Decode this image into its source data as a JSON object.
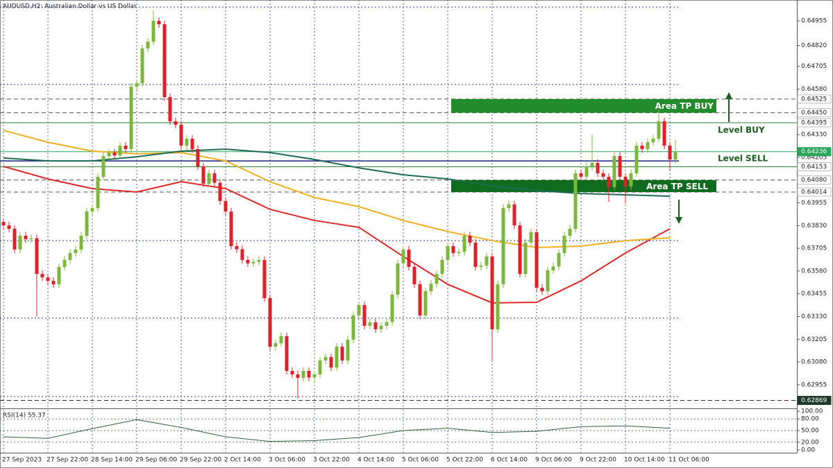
{
  "chart_data": {
    "type": "candlestick",
    "title": "AUDUSD,H2: Australian Dollar vs US Dollar",
    "categories": [
      "27 Sep 2023",
      null,
      null,
      null,
      null,
      null,
      null,
      null,
      "27 Sep 22:00",
      null,
      null,
      null,
      null,
      null,
      null,
      null,
      "28 Sep 14:00",
      null,
      null,
      null,
      null,
      null,
      null,
      null,
      "29 Sep 06:00",
      null,
      null,
      null,
      null,
      null,
      null,
      null,
      "29 Sep 22:00",
      null,
      null,
      null,
      null,
      null,
      null,
      null,
      "2 Oct 14:00",
      null,
      null,
      null,
      null,
      null,
      null,
      null,
      "3 Oct 06:00",
      null,
      null,
      null,
      null,
      null,
      null,
      null,
      "3 Oct 22:00",
      null,
      null,
      null,
      null,
      null,
      null,
      null,
      "4 Oct 14:00",
      null,
      null,
      null,
      null,
      null,
      null,
      null,
      "5 Oct 06:00",
      null,
      null,
      null,
      null,
      null,
      null,
      null,
      "5 Oct 22:00",
      null,
      null,
      null,
      null,
      null,
      null,
      null,
      "6 Oct 14:00",
      null,
      null,
      null,
      null,
      null,
      null,
      null,
      "9 Oct 06:00",
      null,
      null,
      null,
      null,
      null,
      null,
      null,
      "9 Oct 22:00",
      null,
      null,
      null,
      null,
      null,
      null,
      null,
      "10 Oct 14:00",
      null,
      null,
      null,
      null,
      null,
      null,
      null,
      "11 Oct 06:00",
      null
    ],
    "ohlc": [
      [
        0.6385,
        0.6387,
        0.63811,
        0.63831
      ],
      [
        0.63831,
        0.63851,
        0.63792,
        0.63812
      ],
      [
        0.63812,
        0.63832,
        0.63678,
        0.63698
      ],
      [
        0.63698,
        0.63794,
        0.63678,
        0.63774
      ],
      [
        0.63774,
        0.63794,
        0.63735,
        0.63755
      ],
      [
        0.63755,
        0.6378,
        0.63735,
        0.6376
      ],
      [
        0.6376,
        0.6378,
        0.6333,
        0.63564
      ],
      [
        0.63564,
        0.63584,
        0.63525,
        0.63545
      ],
      [
        0.63545,
        0.63565,
        0.63506,
        0.63526
      ],
      [
        0.63526,
        0.63546,
        0.63487,
        0.63507
      ],
      [
        0.63507,
        0.63623,
        0.63487,
        0.63603
      ],
      [
        0.63603,
        0.63661,
        0.63583,
        0.63641
      ],
      [
        0.63641,
        0.63699,
        0.63621,
        0.63679
      ],
      [
        0.63679,
        0.63718,
        0.63659,
        0.63698
      ],
      [
        0.63698,
        0.63794,
        0.63678,
        0.63774
      ],
      [
        0.63774,
        0.63927,
        0.63754,
        0.63907
      ],
      [
        0.63907,
        0.63946,
        0.63887,
        0.63926
      ],
      [
        0.63926,
        0.64118,
        0.63906,
        0.64098
      ],
      [
        0.64098,
        0.64232,
        0.64078,
        0.64212
      ],
      [
        0.64212,
        0.64251,
        0.64192,
        0.64231
      ],
      [
        0.64231,
        0.64251,
        0.64195,
        0.64215
      ],
      [
        0.64215,
        0.64289,
        0.64195,
        0.64269
      ],
      [
        0.64269,
        0.64289,
        0.6423,
        0.6425
      ],
      [
        0.6425,
        0.64613,
        0.6423,
        0.64593
      ],
      [
        0.64593,
        0.64632,
        0.64573,
        0.64612
      ],
      [
        0.64612,
        0.64823,
        0.64592,
        0.64803
      ],
      [
        0.64803,
        0.64861,
        0.64783,
        0.64841
      ],
      [
        0.64841,
        0.65012,
        0.64821,
        0.64955
      ],
      [
        0.64955,
        0.64975,
        0.64916,
        0.64936
      ],
      [
        0.64936,
        0.64956,
        0.64516,
        0.64536
      ],
      [
        0.64536,
        0.64556,
        0.64383,
        0.64403
      ],
      [
        0.64403,
        0.64423,
        0.64364,
        0.64384
      ],
      [
        0.64384,
        0.64404,
        0.64249,
        0.64269
      ],
      [
        0.64269,
        0.64327,
        0.64249,
        0.64307
      ],
      [
        0.64307,
        0.64327,
        0.6423,
        0.6425
      ],
      [
        0.6425,
        0.6427,
        0.64135,
        0.64155
      ],
      [
        0.64155,
        0.64175,
        0.6404,
        0.6406
      ],
      [
        0.6406,
        0.64137,
        0.6404,
        0.64117
      ],
      [
        0.64117,
        0.64137,
        0.64045,
        0.64065
      ],
      [
        0.64065,
        0.64085,
        0.63945,
        0.63965
      ],
      [
        0.63965,
        0.63985,
        0.63887,
        0.63907
      ],
      [
        0.63907,
        0.63927,
        0.63697,
        0.63717
      ],
      [
        0.63717,
        0.63737,
        0.6368,
        0.637
      ],
      [
        0.637,
        0.6372,
        0.63621,
        0.63641
      ],
      [
        0.63641,
        0.63661,
        0.63602,
        0.63622
      ],
      [
        0.63622,
        0.6365,
        0.63602,
        0.6363
      ],
      [
        0.6363,
        0.6366,
        0.6361,
        0.6364
      ],
      [
        0.6364,
        0.6366,
        0.63411,
        0.63431
      ],
      [
        0.63431,
        0.63451,
        0.63144,
        0.63164
      ],
      [
        0.63164,
        0.63204,
        0.63144,
        0.63184
      ],
      [
        0.63184,
        0.63242,
        0.63164,
        0.63222
      ],
      [
        0.63222,
        0.63242,
        0.63011,
        0.63031
      ],
      [
        0.63031,
        0.63051,
        0.62992,
        0.63012
      ],
      [
        0.63012,
        0.63032,
        0.6288,
        0.62993
      ],
      [
        0.62993,
        0.63051,
        0.62973,
        0.63031
      ],
      [
        0.63031,
        0.63051,
        0.62975,
        0.62995
      ],
      [
        0.62995,
        0.63032,
        0.62975,
        0.63012
      ],
      [
        0.63012,
        0.63108,
        0.62992,
        0.63088
      ],
      [
        0.63088,
        0.63127,
        0.63068,
        0.63107
      ],
      [
        0.63107,
        0.63127,
        0.6303,
        0.6305
      ],
      [
        0.6305,
        0.63184,
        0.6303,
        0.63164
      ],
      [
        0.63164,
        0.63184,
        0.63068,
        0.63088
      ],
      [
        0.63088,
        0.63223,
        0.63068,
        0.63203
      ],
      [
        0.63203,
        0.63356,
        0.63183,
        0.63336
      ],
      [
        0.63336,
        0.63413,
        0.63316,
        0.63393
      ],
      [
        0.63393,
        0.63413,
        0.63259,
        0.63279
      ],
      [
        0.63279,
        0.63318,
        0.63259,
        0.63298
      ],
      [
        0.63298,
        0.63318,
        0.6324,
        0.6326
      ],
      [
        0.6326,
        0.63299,
        0.6324,
        0.63279
      ],
      [
        0.63279,
        0.6332,
        0.63259,
        0.633
      ],
      [
        0.633,
        0.6347,
        0.6328,
        0.6345
      ],
      [
        0.6345,
        0.63642,
        0.6343,
        0.63622
      ],
      [
        0.63622,
        0.63718,
        0.63602,
        0.63698
      ],
      [
        0.63698,
        0.63718,
        0.63583,
        0.63603
      ],
      [
        0.63603,
        0.63623,
        0.63487,
        0.63507
      ],
      [
        0.63507,
        0.63527,
        0.63316,
        0.63336
      ],
      [
        0.63336,
        0.63489,
        0.63316,
        0.63469
      ],
      [
        0.63469,
        0.6353,
        0.63449,
        0.6351
      ],
      [
        0.6351,
        0.63584,
        0.6349,
        0.63564
      ],
      [
        0.63564,
        0.63661,
        0.63544,
        0.63641
      ],
      [
        0.63641,
        0.63737,
        0.63621,
        0.63717
      ],
      [
        0.63717,
        0.63737,
        0.63659,
        0.63679
      ],
      [
        0.63679,
        0.63705,
        0.63659,
        0.63685
      ],
      [
        0.63685,
        0.63794,
        0.63665,
        0.63774
      ],
      [
        0.63774,
        0.63794,
        0.63716,
        0.63736
      ],
      [
        0.63736,
        0.63756,
        0.63583,
        0.63603
      ],
      [
        0.63603,
        0.6363,
        0.63583,
        0.6361
      ],
      [
        0.6361,
        0.6368,
        0.6359,
        0.6366
      ],
      [
        0.6366,
        0.6368,
        0.6309,
        0.6326
      ],
      [
        0.6326,
        0.63527,
        0.6324,
        0.63507
      ],
      [
        0.63507,
        0.63946,
        0.63487,
        0.63926
      ],
      [
        0.63926,
        0.63966,
        0.63906,
        0.63946
      ],
      [
        0.63946,
        0.63966,
        0.63811,
        0.63831
      ],
      [
        0.63831,
        0.63851,
        0.63544,
        0.63564
      ],
      [
        0.63564,
        0.63756,
        0.63544,
        0.63736
      ],
      [
        0.63736,
        0.63813,
        0.63716,
        0.63793
      ],
      [
        0.63793,
        0.63813,
        0.63468,
        0.63488
      ],
      [
        0.63488,
        0.63508,
        0.63449,
        0.63469
      ],
      [
        0.63469,
        0.63604,
        0.63449,
        0.63584
      ],
      [
        0.63584,
        0.63625,
        0.63564,
        0.63605
      ],
      [
        0.63605,
        0.63699,
        0.63585,
        0.63679
      ],
      [
        0.63679,
        0.63794,
        0.63659,
        0.63774
      ],
      [
        0.63774,
        0.63832,
        0.63754,
        0.63812
      ],
      [
        0.63812,
        0.64137,
        0.63792,
        0.64117
      ],
      [
        0.64117,
        0.64137,
        0.64078,
        0.64098
      ],
      [
        0.64098,
        0.64175,
        0.64078,
        0.64155
      ],
      [
        0.64155,
        0.6433,
        0.64135,
        0.64174
      ],
      [
        0.64174,
        0.64194,
        0.64097,
        0.64117
      ],
      [
        0.64117,
        0.64137,
        0.64078,
        0.64098
      ],
      [
        0.64098,
        0.64118,
        0.6396,
        0.64041
      ],
      [
        0.64041,
        0.64232,
        0.64021,
        0.64212
      ],
      [
        0.64212,
        0.64232,
        0.64078,
        0.64098
      ],
      [
        0.64098,
        0.64118,
        0.6395,
        0.64045
      ],
      [
        0.64045,
        0.64137,
        0.64025,
        0.64117
      ],
      [
        0.64117,
        0.64289,
        0.64097,
        0.64269
      ],
      [
        0.64269,
        0.64289,
        0.6423,
        0.6425
      ],
      [
        0.6425,
        0.64308,
        0.6423,
        0.64288
      ],
      [
        0.64288,
        0.64327,
        0.64268,
        0.64307
      ],
      [
        0.64307,
        0.6447,
        0.64287,
        0.64403
      ],
      [
        0.64403,
        0.64423,
        0.64249,
        0.64269
      ],
      [
        0.64269,
        0.64289,
        0.64135,
        0.64193
      ],
      [
        0.64193,
        0.643,
        0.64173,
        0.64236
      ]
    ],
    "up_color": "#7cb83a",
    "down_color": "#e3202a",
    "ylim": [
      0.62829,
      0.65039
    ],
    "yticks": [
      0.64955,
      {
        "value": 0.6482,
        "label": "0.64820"
      },
      0.64705,
      {
        "value": 0.6458,
        "label": "0.64580"
      },
      {
        "value": 0.6433,
        "label": "0.64330"
      },
      0.64205,
      0.63955,
      {
        "value": 0.6383,
        "label": "0.63830"
      },
      0.63705,
      {
        "value": 0.6358,
        "label": "0.63580"
      },
      0.63455,
      {
        "value": 0.6333,
        "label": "0.63330"
      },
      0.63205,
      {
        "value": 0.6308,
        "label": "0.63080"
      },
      0.62955
    ],
    "grid": true,
    "moving_averages": [
      {
        "color": "#e02828",
        "x": [
          "27 Sep 2023",
          "27 Sep 22:00",
          "28 Sep 14:00",
          "29 Sep 06:00",
          "29 Sep 22:00",
          "2 Oct 14:00",
          "3 Oct 06:00",
          "3 Oct 22:00",
          "4 Oct 14:00",
          "5 Oct 06:00",
          "5 Oct 22:00",
          "6 Oct 14:00",
          "9 Oct 06:00",
          "9 Oct 22:00",
          "10 Oct 14:00",
          "11 Oct 06:00"
        ],
        "values": [
          0.64155,
          0.64086,
          0.64033,
          0.64014,
          0.64071,
          0.64033,
          0.63919,
          0.63858,
          0.6382,
          0.6366,
          0.63507,
          0.63405,
          0.63408,
          0.63526,
          0.63679,
          0.63812
        ]
      },
      {
        "color": "#f0b020",
        "x": [
          "27 Sep 2023",
          "27 Sep 22:00",
          "28 Sep 14:00",
          "29 Sep 06:00",
          "29 Sep 22:00",
          "2 Oct 14:00",
          "3 Oct 06:00",
          "3 Oct 22:00",
          "4 Oct 14:00",
          "5 Oct 06:00",
          "5 Oct 22:00",
          "6 Oct 14:00",
          "9 Oct 06:00",
          "9 Oct 22:00",
          "10 Oct 14:00",
          "11 Oct 06:00"
        ],
        "values": [
          0.64353,
          0.64288,
          0.64239,
          0.64224,
          0.64231,
          0.64185,
          0.64071,
          0.63984,
          0.63934,
          0.63858,
          0.63797,
          0.63747,
          0.63709,
          0.63717,
          0.63747,
          0.63763
        ]
      },
      {
        "color": "#1d6b55",
        "x": [
          "27 Sep 2023",
          "27 Sep 22:00",
          "28 Sep 14:00",
          "29 Sep 06:00",
          "29 Sep 22:00",
          "2 Oct 14:00",
          "3 Oct 06:00",
          "3 Oct 22:00",
          "4 Oct 14:00",
          "5 Oct 06:00",
          "5 Oct 22:00",
          "6 Oct 14:00",
          "9 Oct 06:00",
          "9 Oct 22:00",
          "10 Oct 14:00",
          "11 Oct 06:00"
        ],
        "values": [
          0.64201,
          0.64185,
          0.64185,
          0.64208,
          0.64239,
          0.6425,
          0.64231,
          0.64193,
          0.64147,
          0.64109,
          0.64086,
          0.64048,
          0.64022,
          0.64006,
          0.63999,
          0.63991
        ]
      }
    ],
    "hlines": [
      {
        "value": 0.65031,
        "color": "#2c3e9e",
        "style": "dotted"
      },
      {
        "value": 0.64605,
        "color": "#2c3e9e",
        "style": "dotted"
      },
      {
        "value": 0.64185,
        "color": "#1a237e",
        "style": "solid"
      },
      {
        "value": 0.63747,
        "color": "#2c3e9e",
        "style": "dotted"
      },
      {
        "value": 0.63321,
        "color": "#2c3e9e",
        "style": "dotted"
      },
      {
        "value": 0.6289,
        "color": "#2c3e9e",
        "style": "dotted"
      }
    ],
    "price_tags": [
      {
        "value": 0.64525,
        "label": "0.64525",
        "color": "#555555",
        "style": "dashed"
      },
      {
        "value": 0.6445,
        "label": "0.64450",
        "color": "#555555",
        "style": "dashed"
      },
      {
        "value": 0.64395,
        "label": "0.64395",
        "color": "#2e7d32",
        "style": "solid"
      },
      {
        "value": 0.64236,
        "label": "0.64236",
        "color": "#26a65b",
        "style": "solid",
        "highlight": true
      },
      {
        "value": 0.64153,
        "label": "0.64153",
        "color": "#2e7d32",
        "style": "solid"
      },
      {
        "value": 0.6408,
        "label": "0.64080",
        "color": "#555555",
        "style": "dashed"
      },
      {
        "value": 0.64014,
        "label": "0.64014",
        "color": "#555555",
        "style": "dashed"
      },
      {
        "value": 0.62869,
        "label": "0.62869",
        "color": "#1e3a2a",
        "style": "dashed",
        "highlight": true
      }
    ],
    "zones": [
      {
        "label": "Area TP BUY",
        "from": 0.64525,
        "to": 0.6445,
        "color": "#228b2c"
      },
      {
        "label": "Area TP SELL",
        "from": 0.6408,
        "to": 0.64014,
        "color": "#0f6b1e"
      }
    ],
    "annotations": [
      "Level BUY",
      "Level SELL"
    ],
    "rsi": {
      "label": "RSI(14) 55.37",
      "color": "#2f5f3a",
      "x": [
        "27 Sep 2023",
        "27 Sep 22:00",
        "28 Sep 14:00",
        "29 Sep 06:00",
        "29 Sep 22:00",
        "2 Oct 14:00",
        "3 Oct 06:00",
        "3 Oct 22:00",
        "4 Oct 14:00",
        "5 Oct 06:00",
        "5 Oct 22:00",
        "6 Oct 14:00",
        "9 Oct 06:00",
        "9 Oct 22:00",
        "10 Oct 14:00",
        "11 Oct 06:00"
      ],
      "values": [
        34,
        30,
        55,
        78,
        58,
        34,
        22,
        24,
        32,
        50,
        56,
        45,
        48,
        60,
        62,
        56
      ],
      "ylim": [
        0,
        100
      ],
      "yticks": [
        {
          "value": 100,
          "label": "100.00"
        },
        {
          "value": 80,
          "label": "80.00"
        },
        {
          "value": 50,
          "label": "50.00"
        },
        {
          "value": 20,
          "label": "20.00"
        },
        {
          "value": 0,
          "label": "0.00"
        }
      ]
    }
  }
}
